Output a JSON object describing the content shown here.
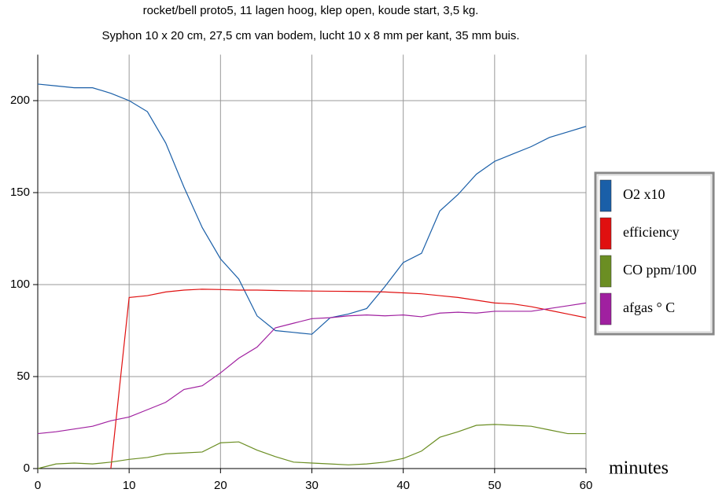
{
  "chart_data": {
    "type": "line",
    "title": "rocket/bell proto5, 11 lagen hoog, klep open, koude start, 3,5 kg.",
    "subtitle": "Syphon 10 x 20 cm, 27,5 cm van bodem, lucht 10 x 8 mm per kant, 35 mm buis.",
    "x_label": "minutes",
    "x": [
      0,
      2,
      4,
      6,
      8,
      10,
      12,
      14,
      16,
      18,
      20,
      22,
      24,
      26,
      28,
      30,
      32,
      34,
      36,
      38,
      40,
      42,
      44,
      46,
      48,
      50,
      52,
      54,
      56,
      58,
      60
    ],
    "series": [
      {
        "name": "O2 x10",
        "color": "#1a5fa8",
        "values": [
          209,
          208,
          207,
          207,
          204,
          200,
          194,
          177,
          153,
          131,
          114,
          103,
          83,
          75,
          74,
          73,
          82,
          84,
          87,
          99,
          112,
          117,
          140,
          149,
          160,
          167,
          171,
          175,
          180,
          183,
          186
        ]
      },
      {
        "name": "efficiency",
        "color": "#e01010",
        "values": [
          null,
          null,
          null,
          null,
          0,
          93,
          94,
          96,
          97,
          97.5,
          97.3,
          97,
          97,
          96.8,
          96.6,
          96.5,
          96.4,
          96.3,
          96.2,
          96,
          95.5,
          95,
          94,
          93,
          91.5,
          90,
          89.5,
          88,
          86,
          84,
          82
        ]
      },
      {
        "name": "CO ppm/100",
        "color": "#6b8e23",
        "values": [
          0,
          2.5,
          3,
          2.5,
          3.5,
          5,
          6,
          8,
          8.5,
          9,
          14,
          14.5,
          10,
          6.5,
          3.5,
          3,
          2.5,
          2,
          2.5,
          3.5,
          5.5,
          9.5,
          17,
          20,
          23.5,
          24,
          23.5,
          23,
          21,
          19,
          19
        ]
      },
      {
        "name": "afgas ° C",
        "color": "#a020a0",
        "values": [
          19,
          20,
          21.5,
          23,
          26,
          28,
          32,
          36,
          43,
          45,
          52,
          60,
          66,
          76.5,
          79,
          81.5,
          82,
          83,
          83.5,
          83,
          83.5,
          82.5,
          84.5,
          85,
          84.5,
          85.5,
          85.5,
          85.5,
          87,
          88.5,
          90
        ]
      }
    ],
    "xlim": [
      0,
      60
    ],
    "xticks": [
      0,
      10,
      20,
      30,
      40,
      50,
      60
    ],
    "ylim": [
      0,
      225
    ],
    "yticks": [
      0,
      50,
      100,
      150,
      200
    ],
    "grid": true,
    "legend": "right"
  }
}
